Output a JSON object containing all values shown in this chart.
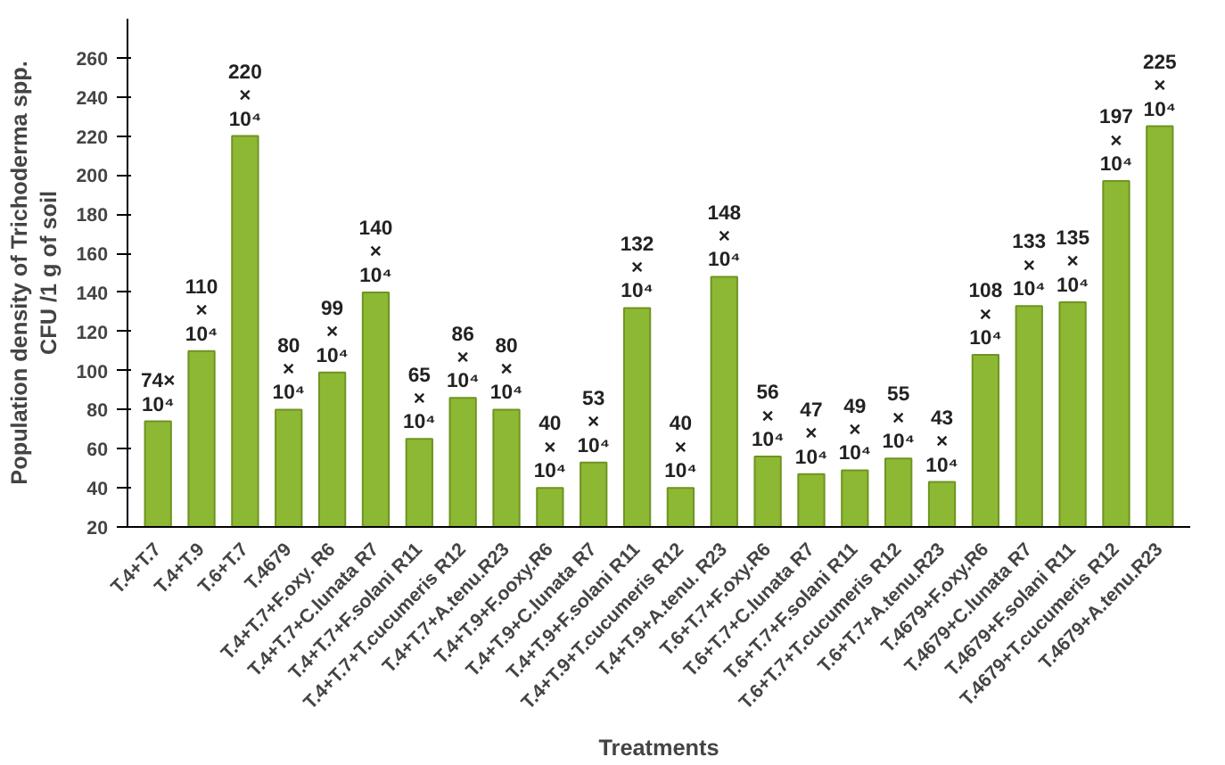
{
  "chart_data": {
    "type": "bar",
    "ylabel": "Population density of Trichoderma spp.\nCFU /1 g of soil",
    "xlabel": "Treatments",
    "categories": [
      "T.4+T.7",
      "T.4+T.9",
      "T.6+T.7",
      "T.4679",
      "T.4+T.7+F.oxy. R6",
      "T.4+T.7+C.lunata R7",
      "T.4+T.7+F.solani R11",
      "T.4+T.7+T.cucumeris R12",
      "T.4+T.7+A.tenu.R23",
      "T.4+T.9+F.ooxy.R6",
      "T.4+T.9+C.lunata R7",
      "T.4+T.9+F.solani R11",
      "T.4+T.9+T.cucumeris R12",
      "T.4+T.9+A.tenu. R23",
      "T.6+T.7+F.oxy.R6",
      "T.6+T.7+C.lunata R7",
      "T.6+T.7+F.solani R11",
      "T.6+T.7+T.cucumeris R12",
      "T.6+T.7+A.tenu.R23",
      "T.4679+F.oxy.R6",
      "T.4679+C.lunata R7",
      "T.4679+F.solani R11",
      "T.4679+T.cucumeris R12",
      "T.4679+A.tenu.R23"
    ],
    "values": [
      74,
      110,
      220,
      80,
      99,
      140,
      65,
      86,
      80,
      40,
      53,
      132,
      40,
      148,
      56,
      47,
      49,
      55,
      43,
      108,
      133,
      135,
      197,
      225
    ],
    "annotations": [
      {
        "text": "74× 10⁴",
        "x": "T.4+T.7",
        "y": 74
      },
      {
        "text": "110 × 10⁴",
        "x": "T.4+T.9",
        "y": 110
      },
      {
        "text": "220 × 10⁴",
        "x": "T.6+T.7",
        "y": 220
      },
      {
        "text": "80 × 10⁴",
        "x": "T.4679",
        "y": 80
      },
      {
        "text": "99 × 10⁴",
        "x": "T.4+T.7+F.oxy. R6",
        "y": 99
      },
      {
        "text": "140 × 10⁴",
        "x": "T.4+T.7+C.lunata R7",
        "y": 140
      },
      {
        "text": "65 × 10⁴",
        "x": "T.4+T.7+F.solani R11",
        "y": 65
      },
      {
        "text": "86 × 10⁴",
        "x": "T.4+T.7+T.cucumeris R12",
        "y": 86
      },
      {
        "text": "80 × 10⁴",
        "x": "T.4+T.7+A.tenu.R23",
        "y": 80
      },
      {
        "text": "40 × 10⁴",
        "x": "T.4+T.9+F.ooxy.R6",
        "y": 40
      },
      {
        "text": "53 × 10⁴",
        "x": "T.4+T.9+C.lunata R7",
        "y": 53
      },
      {
        "text": "132 × 10⁴",
        "x": "T.4+T.9+F.solani R11",
        "y": 132
      },
      {
        "text": "40 × 10⁴",
        "x": "T.4+T.9+T.cucumeris R12",
        "y": 40
      },
      {
        "text": "148 × 10⁴",
        "x": "T.4+T.9+A.tenu. R23",
        "y": 148
      },
      {
        "text": "56 × 10⁴",
        "x": "T.6+T.7+F.oxy.R6",
        "y": 56
      },
      {
        "text": "47 × 10⁴",
        "x": "T.6+T.7+C.lunata R7",
        "y": 47
      },
      {
        "text": "49 × 10⁴",
        "x": "T.6+T.7+F.solani R11",
        "y": 49
      },
      {
        "text": "55 × 10⁴",
        "x": "T.6+T.7+T.cucumeris R12",
        "y": 55
      },
      {
        "text": "43 × 10⁴",
        "x": "T.6+T.7+A.tenu.R23",
        "y": 43
      },
      {
        "text": "108 × 10⁴",
        "x": "T.4679+F.oxy.R6",
        "y": 108
      },
      {
        "text": "133 × 10⁴",
        "x": "T.4679+C.lunata R7",
        "y": 133
      },
      {
        "text": "135 × 10⁴",
        "x": "T.4679+F.solani R11",
        "y": 135
      },
      {
        "text": "197 × 10⁴",
        "x": "T.4679+T.cucumeris R12",
        "y": 197
      },
      {
        "text": "225 × 10⁴",
        "x": "T.4679+A.tenu.R23",
        "y": 225
      }
    ],
    "color": "#8db833",
    "ylim": [
      20,
      280
    ],
    "yticks": [
      20,
      40,
      60,
      80,
      100,
      120,
      140,
      160,
      180,
      200,
      220,
      240,
      260
    ],
    "grid": false
  }
}
